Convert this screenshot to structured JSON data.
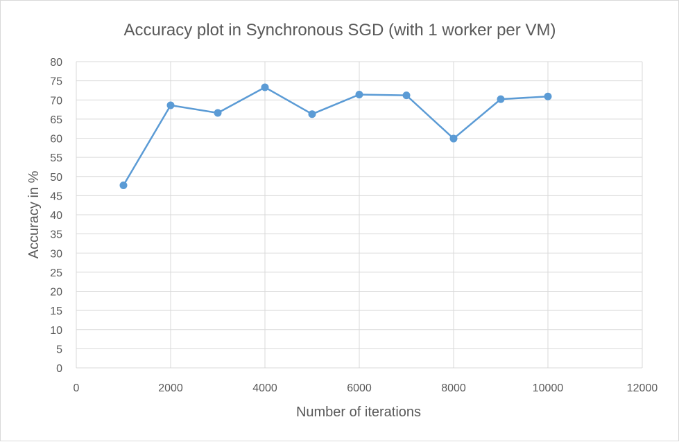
{
  "chart_data": {
    "type": "scatter",
    "title": "Accuracy plot in Synchronous SGD (with 1 worker per VM)",
    "xlabel": "Number of iterations",
    "ylabel": "Accuracy in %",
    "xlim": [
      0,
      12000
    ],
    "ylim": [
      0,
      80
    ],
    "xticks": [
      0,
      2000,
      4000,
      6000,
      8000,
      10000,
      12000
    ],
    "yticks": [
      0,
      5,
      10,
      15,
      20,
      25,
      30,
      35,
      40,
      45,
      50,
      55,
      60,
      65,
      70,
      75,
      80
    ],
    "grid": true,
    "legend": "none",
    "series": [
      {
        "color": "#5b9bd5",
        "marker": "circle",
        "line": "straight",
        "x": [
          1000,
          2000,
          3000,
          4000,
          5000,
          6000,
          7000,
          8000,
          9000,
          10000
        ],
        "y": [
          47.7,
          68.6,
          66.6,
          73.3,
          66.3,
          71.4,
          71.2,
          59.9,
          70.2,
          70.9
        ]
      }
    ]
  }
}
